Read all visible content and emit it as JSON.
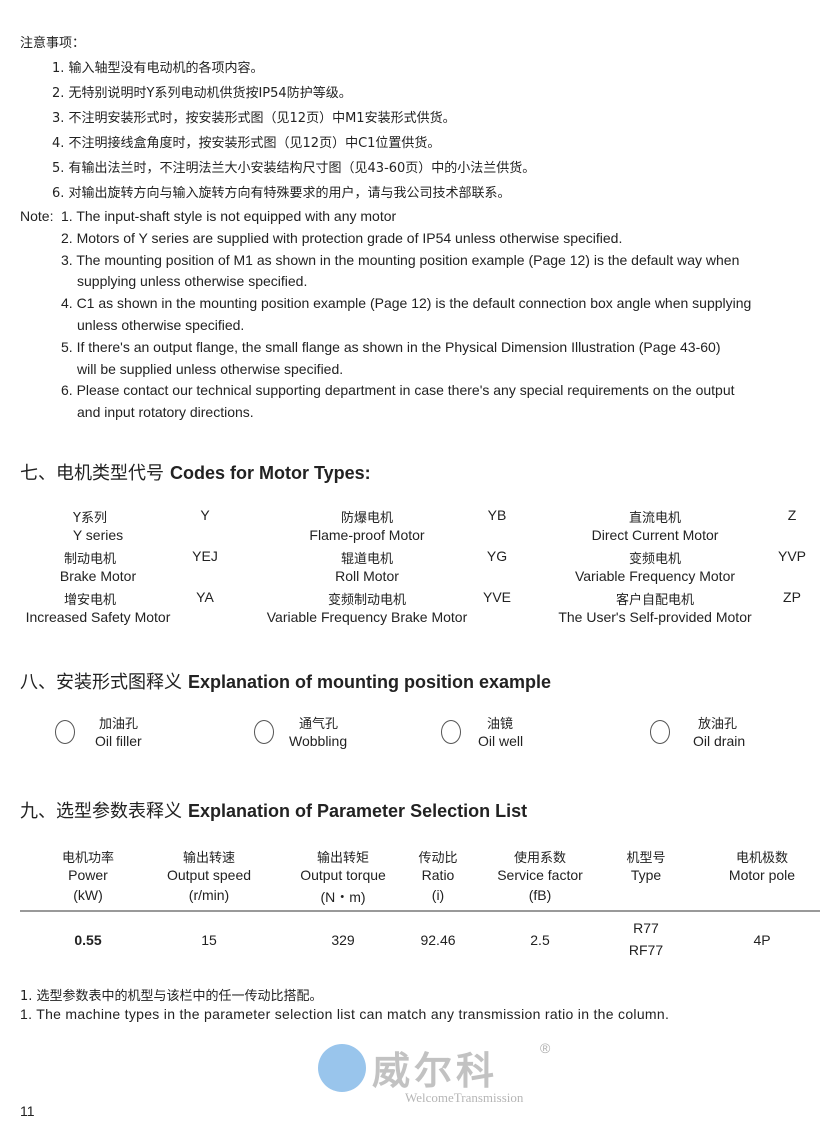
{
  "notes_cn": {
    "title": "注意事项：",
    "items": [
      "1. 输入轴型没有电动机的各项内容。",
      "2. 无特别说明时Y系列电动机供货按IP54防护等级。",
      "3. 不注明安装形式时，按安装形式图（见12页）中M1安装形式供货。",
      "4. 不注明接线盒角度时，按安装形式图（见12页）中C1位置供货。",
      "5. 有输出法兰时，不注明法兰大小安装结构尺寸图（见43-60页）中的小法兰供货。",
      "6. 对输出旋转方向与输入旋转方向有特殊要求的用户，请与我公司技术部联系。"
    ]
  },
  "notes_en": {
    "label": "Note:",
    "lines": [
      "1. The input-shaft style is not equipped with any motor",
      "2. Motors of Y series are supplied with protection grade of IP54 unless otherwise specified.",
      "3. The mounting position of M1 as shown in the mounting position example (Page 12) is the default way when",
      "supplying unless otherwise specified.",
      "4. C1 as shown in the mounting position example (Page 12) is the default connection box angle when supplying",
      "unless otherwise specified.",
      "5. If there's an output flange, the small flange as shown in the Physical Dimension Illustration (Page 43-60)",
      "will be supplied unless otherwise specified.",
      "6. Please contact our technical supporting department in case there's any special requirements on the output",
      "and input rotatory directions."
    ]
  },
  "motor_types": {
    "heading_cn": "七、电机类型代号",
    "heading_en": "Codes for Motor Types:",
    "items": [
      {
        "cn": "Y系列",
        "code": "Y",
        "en": "Y series"
      },
      {
        "cn": "防爆电机",
        "code": "YB",
        "en": "Flame-proof Motor"
      },
      {
        "cn": "直流电机",
        "code": "Z",
        "en": "Direct Current Motor"
      },
      {
        "cn": "制动电机",
        "code": "YEJ",
        "en": "Brake Motor"
      },
      {
        "cn": "辊道电机",
        "code": "YG",
        "en": "Roll Motor"
      },
      {
        "cn": "变频电机",
        "code": "YVP",
        "en": "Variable Frequency Motor"
      },
      {
        "cn": "增安电机",
        "code": "YA",
        "en": "Increased Safety Motor"
      },
      {
        "cn": "变频制动电机",
        "code": "YVE",
        "en": "Variable Frequency Brake Motor"
      },
      {
        "cn": "客户自配电机",
        "code": "ZP",
        "en": "The User's Self-provided Motor"
      }
    ]
  },
  "watermark": {
    "cn": "威尔科",
    "en": "WelcomeTransmission",
    "mark": "®"
  },
  "mounting": {
    "heading_cn": "八、安装形式图释义",
    "heading_en": "Explanation of mounting position example",
    "items": [
      {
        "icon": "oil-filler-icon",
        "cn": "加油孔",
        "en": "Oil filler"
      },
      {
        "icon": "wobbling-icon",
        "cn": "通气孔",
        "en": "Wobbling"
      },
      {
        "icon": "oil-well-icon",
        "cn": "油镜",
        "en": "Oil well"
      },
      {
        "icon": "oil-drain-icon",
        "cn": "放油孔",
        "en": "Oil drain"
      }
    ]
  },
  "params": {
    "heading_cn": "九、选型参数表释义",
    "heading_en": "Explanation of Parameter Selection List",
    "columns": [
      {
        "cn": "电机功率",
        "en": "Power",
        "unit": "(kW)"
      },
      {
        "cn": "输出转速",
        "en": "Output speed",
        "unit": "(r/min)"
      },
      {
        "cn": "输出转矩",
        "en": "Output torque",
        "unit": "(N・m)"
      },
      {
        "cn": "传动比",
        "en": "Ratio",
        "unit": "(i)"
      },
      {
        "cn": "使用系数",
        "en": "Service factor",
        "unit": "(fB)"
      },
      {
        "cn": "机型号",
        "en": "Type",
        "unit": ""
      },
      {
        "cn": "电机极数",
        "en": "Motor pole",
        "unit": ""
      }
    ],
    "row": [
      "0.55",
      "15",
      "329",
      "92.46",
      "2.5",
      "R77",
      "4P"
    ],
    "type2": "RF77"
  },
  "footnote": {
    "cn": "1. 选型参数表中的机型与该栏中的任一传动比搭配。",
    "en": "1. The machine types in the parameter selection list can match any transmission ratio in the column."
  },
  "page_number": "11"
}
